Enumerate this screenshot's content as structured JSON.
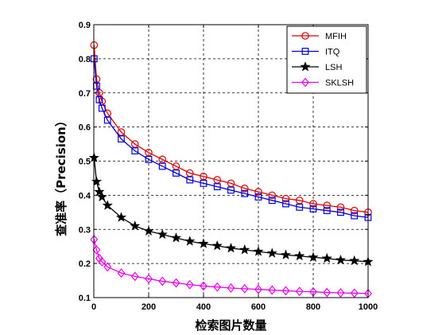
{
  "chart_data": {
    "type": "line",
    "title": "",
    "xlabel": "检索图片数量",
    "ylabel": "查准率（Precision）",
    "xlim": [
      0,
      1000
    ],
    "ylim": [
      0.1,
      0.9
    ],
    "xticks": [
      0,
      200,
      400,
      600,
      800,
      1000
    ],
    "yticks": [
      0.1,
      0.2,
      0.3,
      0.4,
      0.5,
      0.6,
      0.7,
      0.8,
      0.9
    ],
    "grid": true,
    "legend_position": "top-right",
    "x": [
      1,
      10,
      20,
      30,
      50,
      100,
      150,
      200,
      250,
      300,
      350,
      400,
      450,
      500,
      550,
      600,
      650,
      700,
      750,
      800,
      850,
      900,
      950,
      1000
    ],
    "series": [
      {
        "name": "MFIH",
        "color": "#e00000",
        "marker": "circle",
        "values": [
          0.84,
          0.74,
          0.7,
          0.675,
          0.64,
          0.585,
          0.55,
          0.525,
          0.505,
          0.485,
          0.465,
          0.455,
          0.445,
          0.435,
          0.42,
          0.41,
          0.4,
          0.39,
          0.385,
          0.375,
          0.37,
          0.365,
          0.355,
          0.35
        ]
      },
      {
        "name": "ITQ",
        "color": "#0000dd",
        "marker": "square",
        "values": [
          0.8,
          0.72,
          0.68,
          0.655,
          0.62,
          0.565,
          0.53,
          0.505,
          0.485,
          0.465,
          0.445,
          0.435,
          0.425,
          0.415,
          0.405,
          0.395,
          0.385,
          0.375,
          0.365,
          0.36,
          0.355,
          0.35,
          0.34,
          0.335
        ]
      },
      {
        "name": "LSH",
        "color": "#000000",
        "marker": "star",
        "values": [
          0.51,
          0.44,
          0.41,
          0.395,
          0.37,
          0.335,
          0.31,
          0.295,
          0.285,
          0.275,
          0.265,
          0.258,
          0.252,
          0.245,
          0.24,
          0.235,
          0.23,
          0.225,
          0.222,
          0.218,
          0.215,
          0.21,
          0.208,
          0.205
        ]
      },
      {
        "name": "SKLSH",
        "color": "#ee00ee",
        "marker": "diamond",
        "values": [
          0.27,
          0.24,
          0.215,
          0.205,
          0.19,
          0.172,
          0.162,
          0.155,
          0.148,
          0.143,
          0.138,
          0.134,
          0.131,
          0.128,
          0.126,
          0.124,
          0.122,
          0.12,
          0.118,
          0.117,
          0.115,
          0.114,
          0.113,
          0.112
        ]
      }
    ]
  }
}
